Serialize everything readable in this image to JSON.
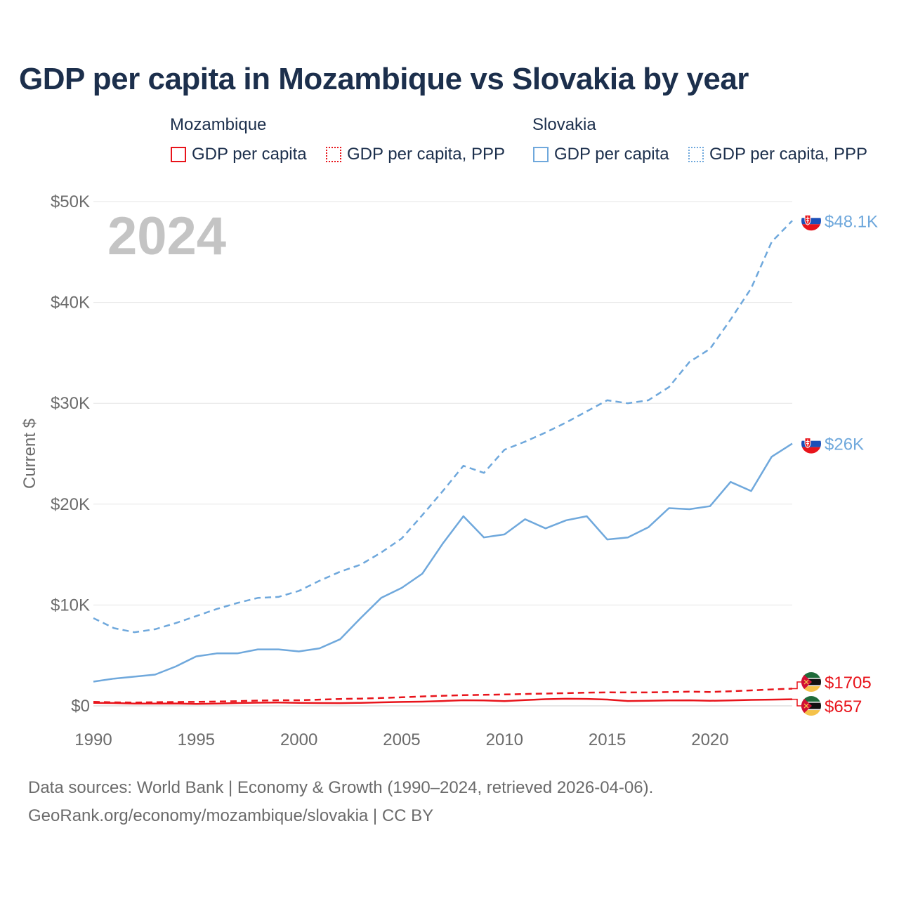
{
  "title": "GDP per capita in Mozambique vs Slovakia by year",
  "legend": {
    "group_moz": "Mozambique",
    "group_svk": "Slovakia",
    "moz_gdp": "GDP per capita",
    "moz_ppp": "GDP per capita, PPP",
    "svk_gdp": "GDP per capita",
    "svk_ppp": "GDP per capita, PPP"
  },
  "colors": {
    "mozambique": "#e8141b",
    "slovakia": "#6fa8dc",
    "grid": "#e6e6e6",
    "axis_text": "#6b6b6b",
    "title": "#1c2f4c"
  },
  "footer": {
    "line1": "Data sources: World Bank | Economy & Growth (1990–2024, retrieved 2026-04-06).",
    "line2": "GeoRank.org/economy/mozambique/slovakia | CC BY"
  },
  "chart_data": {
    "type": "line",
    "year_label": "2024",
    "ylabel": "Current $",
    "xlim": [
      1990,
      2024
    ],
    "ylim": [
      0,
      50000
    ],
    "x_ticks": [
      1990,
      1995,
      2000,
      2005,
      2010,
      2015,
      2020
    ],
    "y_ticks": [
      {
        "value": 0,
        "label": "$0"
      },
      {
        "value": 10000,
        "label": "$10K"
      },
      {
        "value": 20000,
        "label": "$20K"
      },
      {
        "value": 30000,
        "label": "$30K"
      },
      {
        "value": 40000,
        "label": "$40K"
      },
      {
        "value": 50000,
        "label": "$50K"
      }
    ],
    "x": [
      1990,
      1991,
      1992,
      1993,
      1994,
      1995,
      1996,
      1997,
      1998,
      1999,
      2000,
      2001,
      2002,
      2003,
      2004,
      2005,
      2006,
      2007,
      2008,
      2009,
      2010,
      2011,
      2012,
      2013,
      2014,
      2015,
      2016,
      2017,
      2018,
      2019,
      2020,
      2021,
      2022,
      2023,
      2024
    ],
    "series": [
      {
        "name": "Slovakia GDP per capita, PPP",
        "country": "slovakia",
        "dash": true,
        "end_label": "$48.1K",
        "values": [
          8700,
          7700,
          7300,
          7600,
          8200,
          8900,
          9600,
          10200,
          10700,
          10800,
          11400,
          12400,
          13300,
          14000,
          15200,
          16600,
          18900,
          21300,
          23800,
          23100,
          25400,
          26200,
          27100,
          28100,
          29200,
          30300,
          30000,
          30300,
          31600,
          34100,
          35400,
          38300,
          41400,
          46000,
          48100
        ]
      },
      {
        "name": "Slovakia GDP per capita",
        "country": "slovakia",
        "dash": false,
        "end_label": "$26K",
        "values": [
          2400,
          2700,
          2900,
          3100,
          3900,
          4900,
          5200,
          5200,
          5600,
          5600,
          5400,
          5700,
          6600,
          8700,
          10700,
          11700,
          13100,
          16100,
          18800,
          16700,
          17000,
          18500,
          17600,
          18400,
          18800,
          16500,
          16700,
          17700,
          19600,
          19500,
          19800,
          22200,
          21300,
          24700,
          26000
        ]
      },
      {
        "name": "Mozambique GDP per capita, PPP",
        "country": "mozambique",
        "dash": true,
        "end_label": "$1705",
        "values": [
          400,
          350,
          330,
          360,
          380,
          400,
          430,
          470,
          520,
          560,
          560,
          620,
          680,
          720,
          780,
          850,
          930,
          1000,
          1060,
          1090,
          1130,
          1180,
          1220,
          1260,
          1310,
          1340,
          1330,
          1330,
          1370,
          1410,
          1380,
          1450,
          1530,
          1630,
          1705
        ]
      },
      {
        "name": "Mozambique GDP per capita",
        "country": "mozambique",
        "dash": false,
        "end_label": "$657",
        "values": [
          300,
          280,
          220,
          230,
          240,
          190,
          230,
          280,
          310,
          330,
          300,
          280,
          270,
          300,
          350,
          390,
          420,
          480,
          560,
          540,
          470,
          580,
          660,
          700,
          690,
          630,
          480,
          500,
          540,
          550,
          500,
          540,
          590,
          620,
          657
        ]
      }
    ]
  }
}
